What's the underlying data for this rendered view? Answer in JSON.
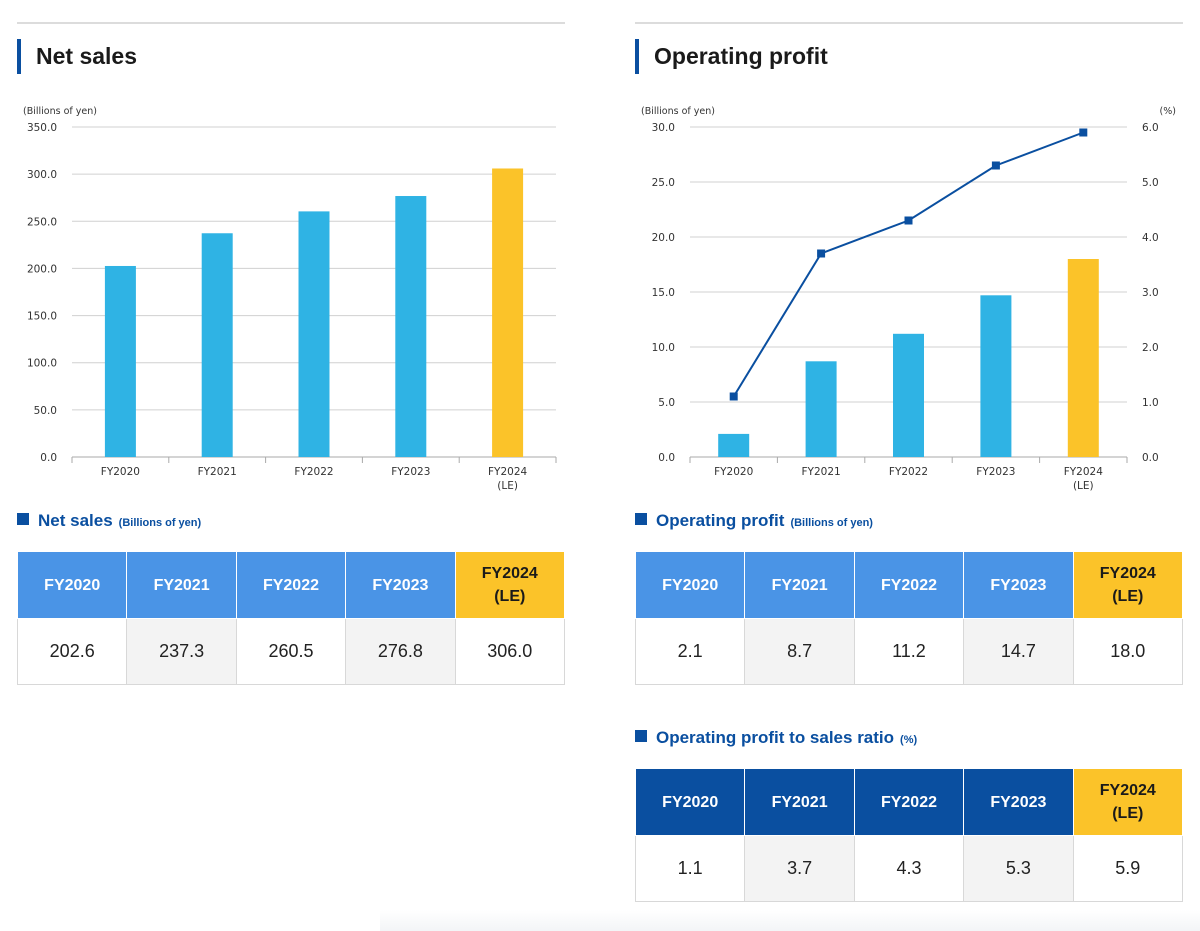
{
  "net_sales": {
    "heading": "Net sales",
    "table_title": "Net sales",
    "table_unit": "(Billions of yen)",
    "headers": [
      [
        "FY2020"
      ],
      [
        "FY2021"
      ],
      [
        "FY2022"
      ],
      [
        "FY2023"
      ],
      [
        "FY2024",
        "(LE)"
      ]
    ],
    "values": [
      "202.6",
      "237.3",
      "260.5",
      "276.8",
      "306.0"
    ]
  },
  "operating_profit": {
    "heading": "Operating profit",
    "table_title": "Operating profit",
    "table_unit": "(Billions of yen)",
    "headers": [
      [
        "FY2020"
      ],
      [
        "FY2021"
      ],
      [
        "FY2022"
      ],
      [
        "FY2023"
      ],
      [
        "FY2024",
        "(LE)"
      ]
    ],
    "values": [
      "2.1",
      "8.7",
      "11.2",
      "14.7",
      "18.0"
    ]
  },
  "ratio": {
    "table_title": "Operating profit to sales ratio",
    "table_unit": "(%)",
    "headers": [
      [
        "FY2020"
      ],
      [
        "FY2021"
      ],
      [
        "FY2022"
      ],
      [
        "FY2023"
      ],
      [
        "FY2024",
        "(LE)"
      ]
    ],
    "values": [
      "1.1",
      "3.7",
      "4.3",
      "5.3",
      "5.9"
    ]
  },
  "colors": {
    "bar": "#2fb3e4",
    "highlight": "#fbc329",
    "line": "#0a4fa0"
  },
  "chart_data": [
    {
      "type": "bar",
      "categories": [
        [
          "FY2020"
        ],
        [
          "FY2021"
        ],
        [
          "FY2022"
        ],
        [
          "FY2023"
        ],
        [
          "FY2024",
          "(LE)"
        ]
      ],
      "values": [
        202.6,
        237.3,
        260.5,
        276.8,
        306.0
      ],
      "highlight_index": 4,
      "ylabel": "(Billions of yen)",
      "ylim": [
        0,
        350
      ],
      "yticks": [
        "0.0",
        "50.0",
        "100.0",
        "150.0",
        "200.0",
        "250.0",
        "300.0",
        "350.0"
      ],
      "grid": true
    },
    {
      "type": "bar+line",
      "categories": [
        [
          "FY2020"
        ],
        [
          "FY2021"
        ],
        [
          "FY2022"
        ],
        [
          "FY2023"
        ],
        [
          "FY2024",
          "(LE)"
        ]
      ],
      "series": [
        {
          "kind": "bar",
          "axis": "left",
          "values": [
            2.1,
            8.7,
            11.2,
            14.7,
            18.0
          ]
        },
        {
          "kind": "line",
          "axis": "right",
          "values": [
            1.1,
            3.7,
            4.3,
            5.3,
            5.9
          ]
        }
      ],
      "highlight_index": 4,
      "ylabel": "(Billions of yen)",
      "y2label": "(%)",
      "ylim": [
        0,
        30
      ],
      "y2lim": [
        0,
        6
      ],
      "yticks": [
        "0.0",
        "5.0",
        "10.0",
        "15.0",
        "20.0",
        "25.0",
        "30.0"
      ],
      "y2ticks": [
        "0.0",
        "1.0",
        "2.0",
        "3.0",
        "4.0",
        "5.0",
        "6.0"
      ],
      "grid": true
    }
  ]
}
